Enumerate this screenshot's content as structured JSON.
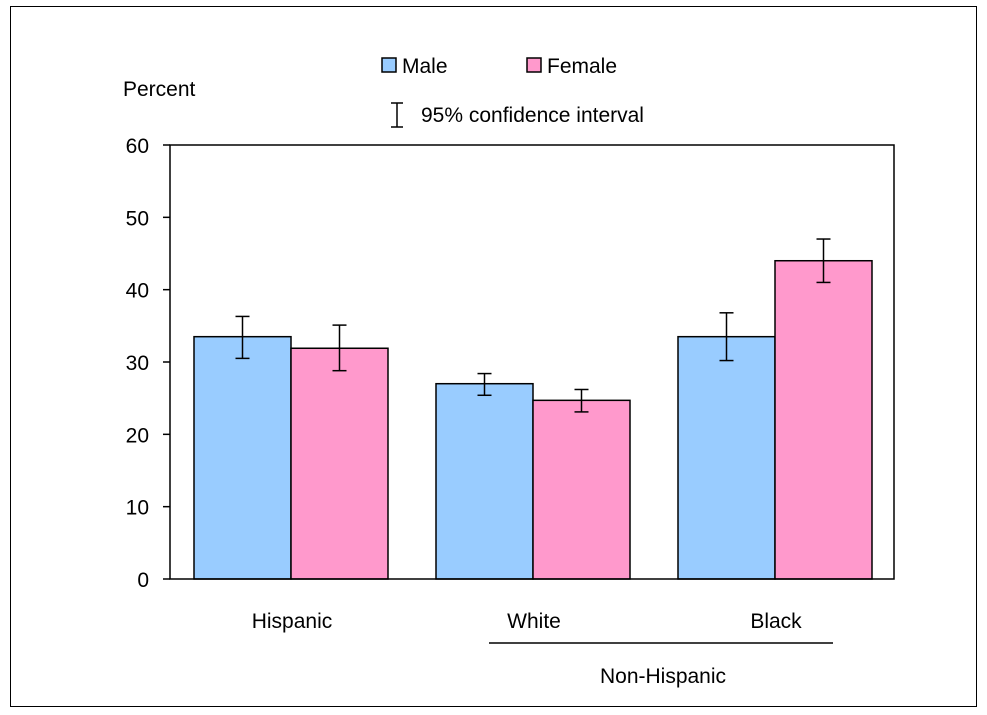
{
  "chart_data": {
    "type": "bar",
    "title": "",
    "ylabel": "Percent",
    "xlabel": "",
    "ylim": [
      0,
      60
    ],
    "yticks": [
      0,
      10,
      20,
      30,
      40,
      50,
      60
    ],
    "categories": [
      "Hispanic",
      "White",
      "Black"
    ],
    "group_label": {
      "text": "Non-Hispanic",
      "spans": [
        "White",
        "Black"
      ]
    },
    "series": [
      {
        "name": "Male",
        "color": "#99ccff",
        "values": [
          33.5,
          27.0,
          33.5
        ],
        "ci_low": [
          30.5,
          25.4,
          30.2
        ],
        "ci_high": [
          36.3,
          28.4,
          36.8
        ]
      },
      {
        "name": "Female",
        "color": "#ff99cc",
        "values": [
          31.9,
          24.7,
          44.0
        ],
        "ci_low": [
          28.8,
          23.1,
          41.0
        ],
        "ci_high": [
          35.1,
          26.2,
          47.0
        ]
      }
    ],
    "legend": {
      "placement": "top",
      "ci_label": "95% confidence interval"
    },
    "grid": false
  }
}
